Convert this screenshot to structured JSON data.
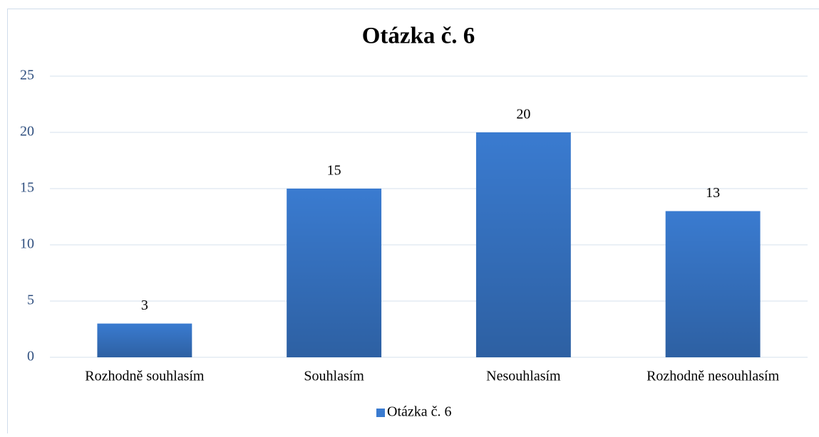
{
  "chart_data": {
    "type": "bar",
    "title": "Otázka č. 6",
    "categories": [
      "Rozhodně souhlasím",
      "Souhlasím",
      "Nesouhlasím",
      "Rozhodně nesouhlasím"
    ],
    "series": [
      {
        "name": "Otázka č. 6",
        "color": "#3a7bd0",
        "values": [
          3,
          15,
          20,
          13
        ]
      }
    ],
    "ylim": [
      0,
      25
    ],
    "yticks": [
      0,
      5,
      10,
      15,
      20,
      25
    ],
    "grid": true,
    "legend": "bottom"
  }
}
